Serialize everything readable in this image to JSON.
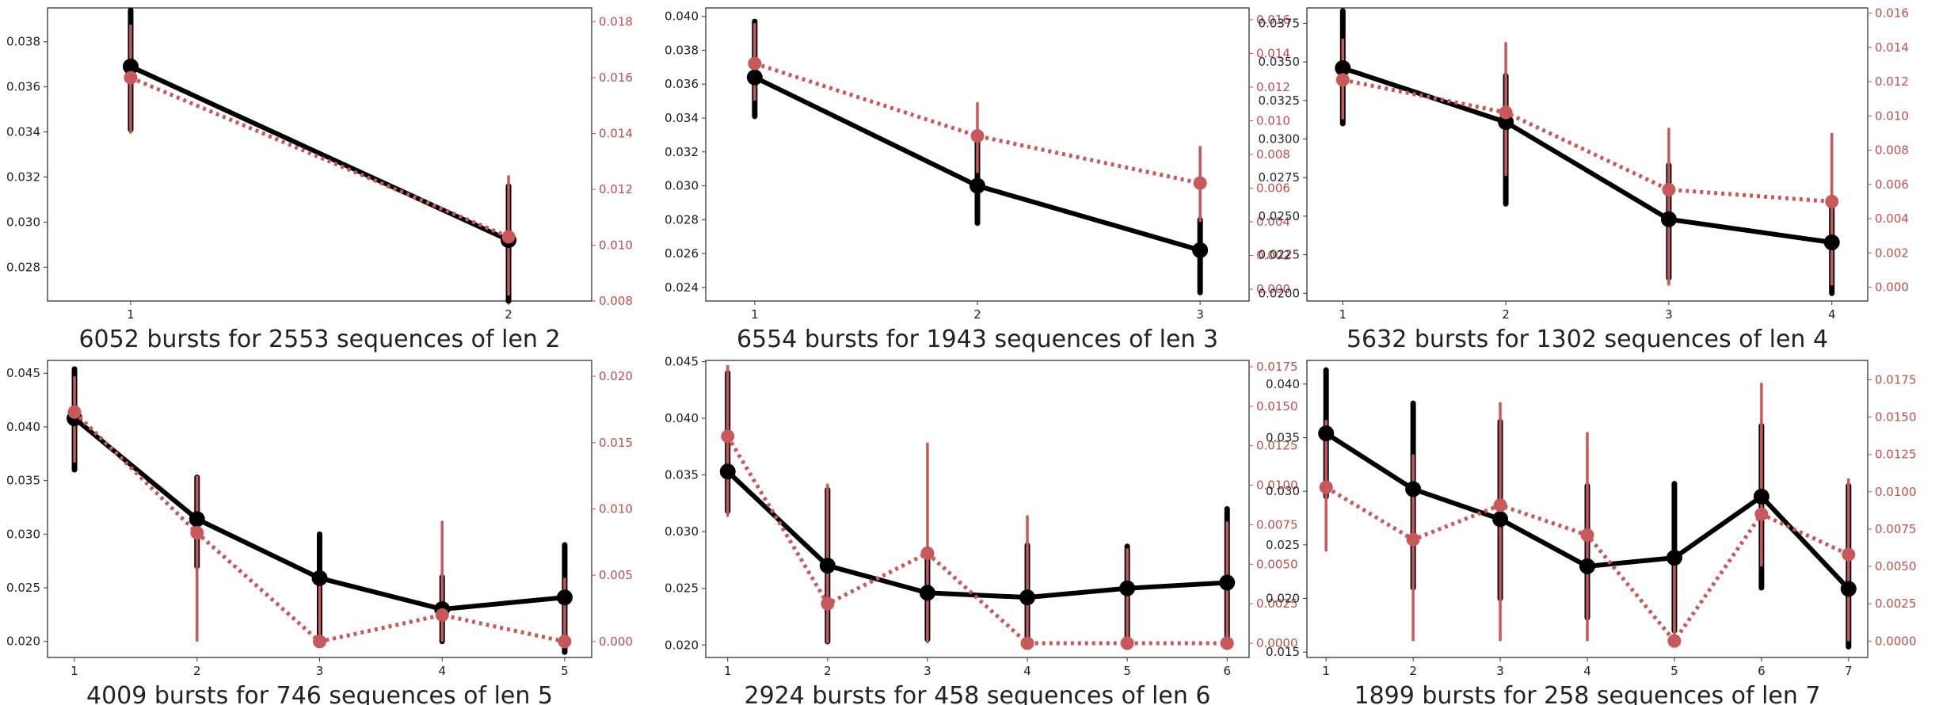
{
  "figure": {
    "colors": {
      "primary": "#000000",
      "secondary": "#c8585a",
      "axis_right": "#c0504d"
    }
  },
  "chart_data": [
    {
      "type": "line",
      "title": "6052 bursts for 2553 sequences of len 2",
      "x": [
        1,
        2
      ],
      "y_left_lim": [
        0.0265,
        0.0395
      ],
      "y_left_ticks": [
        "0.028",
        "0.030",
        "0.032",
        "0.034",
        "0.036",
        "0.038"
      ],
      "y_right_lim": [
        0.008,
        0.0185
      ],
      "y_right_ticks": [
        "0.008",
        "0.010",
        "0.012",
        "0.014",
        "0.016",
        "0.018"
      ],
      "series": [
        {
          "axis": "left",
          "style": "solid",
          "values": [
            0.0369,
            0.0292
          ],
          "err_low": [
            0.0341,
            0.0265
          ],
          "err_high": [
            0.0394,
            0.0316
          ]
        },
        {
          "axis": "right",
          "style": "dotted",
          "values": [
            0.016,
            0.0103
          ],
          "err_low": [
            0.014,
            0.0082
          ],
          "err_high": [
            0.0179,
            0.0125
          ]
        }
      ]
    },
    {
      "type": "line",
      "title": "6554 bursts for 1943 sequences of len 3",
      "x": [
        1,
        2,
        3
      ],
      "y_left_lim": [
        0.0232,
        0.0405
      ],
      "y_left_ticks": [
        "0.024",
        "0.026",
        "0.028",
        "0.030",
        "0.032",
        "0.034",
        "0.036",
        "0.038",
        "0.040"
      ],
      "y_right_lim": [
        -0.0007,
        0.0167
      ],
      "y_right_ticks": [
        "0.000",
        "0.002",
        "0.004",
        "0.006",
        "0.008",
        "0.010",
        "0.012",
        "0.014",
        "0.016"
      ],
      "series": [
        {
          "axis": "left",
          "style": "solid",
          "values": [
            0.0364,
            0.03,
            0.0262
          ],
          "err_low": [
            0.0341,
            0.0278,
            0.0237
          ],
          "err_high": [
            0.0397,
            0.033,
            0.028
          ]
        },
        {
          "axis": "right",
          "style": "dotted",
          "values": [
            0.0134,
            0.0091,
            0.0063
          ],
          "err_low": [
            0.0112,
            0.0069,
            0.004
          ],
          "err_high": [
            0.0158,
            0.0111,
            0.0085
          ]
        }
      ]
    },
    {
      "type": "line",
      "title": "5632 bursts for 1302 sequences of len 4",
      "x": [
        1,
        2,
        3,
        4
      ],
      "y_left_lim": [
        0.0195,
        0.0385
      ],
      "y_left_ticks": [
        "0.0200",
        "0.0225",
        "0.0250",
        "0.0275",
        "0.0300",
        "0.0325",
        "0.0350",
        "0.0375"
      ],
      "y_right_lim": [
        -0.0008,
        0.0163
      ],
      "y_right_ticks": [
        "0.000",
        "0.002",
        "0.004",
        "0.006",
        "0.008",
        "0.010",
        "0.012",
        "0.014",
        "0.016"
      ],
      "series": [
        {
          "axis": "left",
          "style": "solid",
          "values": [
            0.0346,
            0.0311,
            0.0248,
            0.0233
          ],
          "err_low": [
            0.031,
            0.0258,
            0.021,
            0.02
          ],
          "err_high": [
            0.0383,
            0.0341,
            0.0283,
            0.0256
          ]
        },
        {
          "axis": "right",
          "style": "dotted",
          "values": [
            0.0121,
            0.0102,
            0.0057,
            0.005
          ],
          "err_low": [
            0.0098,
            0.0065,
            0.0001,
            0.0001
          ],
          "err_high": [
            0.0145,
            0.0143,
            0.0093,
            0.009
          ]
        }
      ]
    },
    {
      "type": "line",
      "title": "4009 bursts for 746 sequences of len 5",
      "x": [
        1,
        2,
        3,
        4,
        5
      ],
      "y_left_lim": [
        0.0185,
        0.0462
      ],
      "y_left_ticks": [
        "0.020",
        "0.025",
        "0.030",
        "0.035",
        "0.040",
        "0.045"
      ],
      "y_right_lim": [
        -0.0012,
        0.0212
      ],
      "y_right_ticks": [
        "0.000",
        "0.005",
        "0.010",
        "0.015",
        "0.020"
      ],
      "series": [
        {
          "axis": "left",
          "style": "solid",
          "values": [
            0.0408,
            0.0314,
            0.0259,
            0.023,
            0.0241
          ],
          "err_low": [
            0.036,
            0.027,
            0.02,
            0.02,
            0.019
          ],
          "err_high": [
            0.0454,
            0.0353,
            0.03,
            0.026,
            0.029
          ]
        },
        {
          "axis": "right",
          "style": "dotted",
          "values": [
            0.0173,
            0.0082,
            0.0,
            0.002,
            0.0
          ],
          "err_low": [
            0.0135,
            0.0,
            0.0,
            0.0,
            0.0
          ],
          "err_high": [
            0.02,
            0.0125,
            0.0048,
            0.0091,
            0.0048
          ]
        }
      ]
    },
    {
      "type": "line",
      "title": "2924 bursts for 458 sequences of len 6",
      "x": [
        1,
        2,
        3,
        4,
        5,
        6
      ],
      "y_left_lim": [
        0.0189,
        0.0451
      ],
      "y_left_ticks": [
        "0.020",
        "0.025",
        "0.030",
        "0.035",
        "0.040",
        "0.045"
      ],
      "y_right_lim": [
        -0.0009,
        0.0179
      ],
      "y_right_ticks": [
        "0.0000",
        "0.0025",
        "0.0050",
        "0.0075",
        "0.0100",
        "0.0125",
        "0.0150",
        "0.0175"
      ],
      "series": [
        {
          "axis": "left",
          "style": "solid",
          "values": [
            0.0353,
            0.027,
            0.0246,
            0.0242,
            0.025,
            0.0255
          ],
          "err_low": [
            0.0318,
            0.0203,
            0.0205,
            0.02,
            0.02,
            0.02
          ],
          "err_high": [
            0.044,
            0.0337,
            0.028,
            0.0288,
            0.0287,
            0.032
          ]
        },
        {
          "axis": "right",
          "style": "dotted",
          "values": [
            0.0131,
            0.0025,
            0.0057,
            0.0,
            0.0,
            0.0
          ],
          "err_low": [
            0.008,
            0.0,
            0.0,
            0.0,
            0.0,
            0.0
          ],
          "err_high": [
            0.0176,
            0.0101,
            0.0127,
            0.0081,
            0.006,
            0.0077
          ]
        }
      ]
    },
    {
      "type": "line",
      "title": "1899 bursts for 258 sequences of len 7",
      "x": [
        1,
        2,
        3,
        4,
        5,
        6,
        7
      ],
      "y_left_lim": [
        0.0145,
        0.0422
      ],
      "y_left_ticks": [
        "0.015",
        "0.020",
        "0.025",
        "0.030",
        "0.035",
        "0.040"
      ],
      "y_right_lim": [
        -0.0011,
        0.0188
      ],
      "y_right_ticks": [
        "0.0000",
        "0.0025",
        "0.0050",
        "0.0075",
        "0.0100",
        "0.0125",
        "0.0150",
        "0.0175"
      ],
      "series": [
        {
          "axis": "left",
          "style": "solid",
          "values": [
            0.0354,
            0.0302,
            0.0274,
            0.023,
            0.0238,
            0.0295,
            0.0209
          ],
          "err_low": [
            0.0295,
            0.021,
            0.02,
            0.0182,
            0.017,
            0.021,
            0.0155
          ],
          "err_high": [
            0.0413,
            0.0382,
            0.0365,
            0.0305,
            0.0307,
            0.0361,
            0.0305
          ]
        },
        {
          "axis": "right",
          "style": "dotted",
          "values": [
            0.0103,
            0.0068,
            0.0091,
            0.0071,
            0.0,
            0.0085,
            0.0058
          ],
          "err_low": [
            0.006,
            0.0,
            0.0,
            0.0,
            0.0,
            0.005,
            0.0
          ],
          "err_high": [
            0.0148,
            0.0125,
            0.016,
            0.014,
            0.006,
            0.0173,
            0.0109
          ]
        }
      ]
    }
  ]
}
